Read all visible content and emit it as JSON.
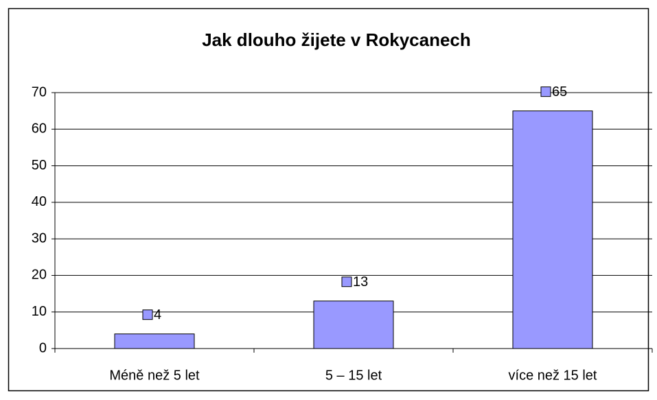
{
  "chart_data": {
    "type": "bar",
    "title": "Jak dlouho žijete v Rokycanech",
    "categories": [
      "Méně než 5 let",
      "5 – 15 let",
      "více než 15 let"
    ],
    "values": [
      4,
      13,
      65
    ],
    "color": "#9999ff",
    "ylim": [
      0,
      70
    ],
    "yticks": [
      0,
      10,
      20,
      30,
      40,
      50,
      60,
      70
    ],
    "grid": true
  }
}
